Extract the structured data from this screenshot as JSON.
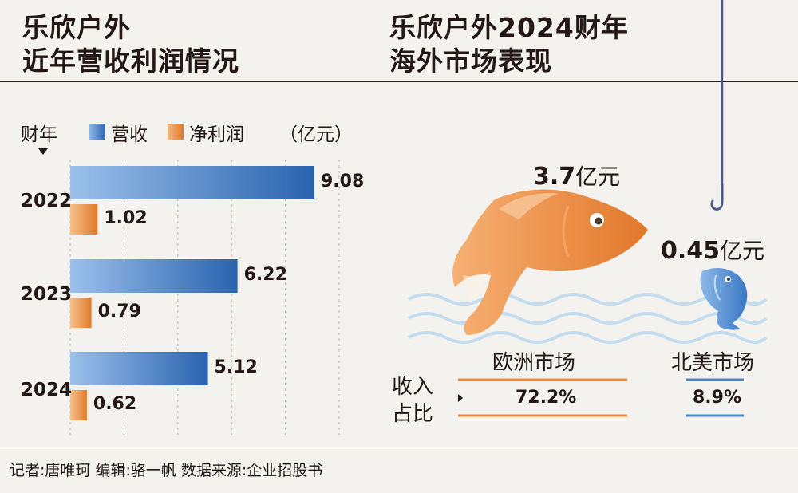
{
  "left_title": [
    "乐欣户外",
    "近年营收利润情况"
  ],
  "right_title": [
    "乐欣户外2024财年",
    "海外市场表现"
  ],
  "chart_data": [
    {
      "type": "bar",
      "orientation": "horizontal",
      "category_label": "财年",
      "unit": "（亿元）",
      "categories": [
        "2022",
        "2023",
        "2024"
      ],
      "series": [
        {
          "name": "营收",
          "values": [
            9.08,
            6.22,
            5.12
          ],
          "color": "#3a78c4"
        },
        {
          "name": "净利润",
          "values": [
            1.02,
            0.79,
            0.62
          ],
          "color": "#e8893a"
        }
      ],
      "value_labels": {
        "营收": [
          "9.08",
          "6.22",
          "5.12"
        ],
        "净利润": [
          "1.02",
          "0.79",
          "0.62"
        ]
      },
      "xlim": [
        0,
        10
      ],
      "grid": true,
      "legend": "top"
    }
  ],
  "markets": {
    "europe": {
      "name": "欧洲市场",
      "revenue_num": "3.7",
      "revenue_unit": "亿元",
      "share": "72.2%",
      "color": "#e8893a"
    },
    "north_america": {
      "name": "北美市场",
      "revenue_num": "0.45",
      "revenue_unit": "亿元",
      "share": "8.9%",
      "color": "#4a86c8"
    }
  },
  "share_label": [
    "收入",
    "占比"
  ],
  "footer": "记者:唐唯珂  编辑:骆一帆  数据来源:企业招股书"
}
